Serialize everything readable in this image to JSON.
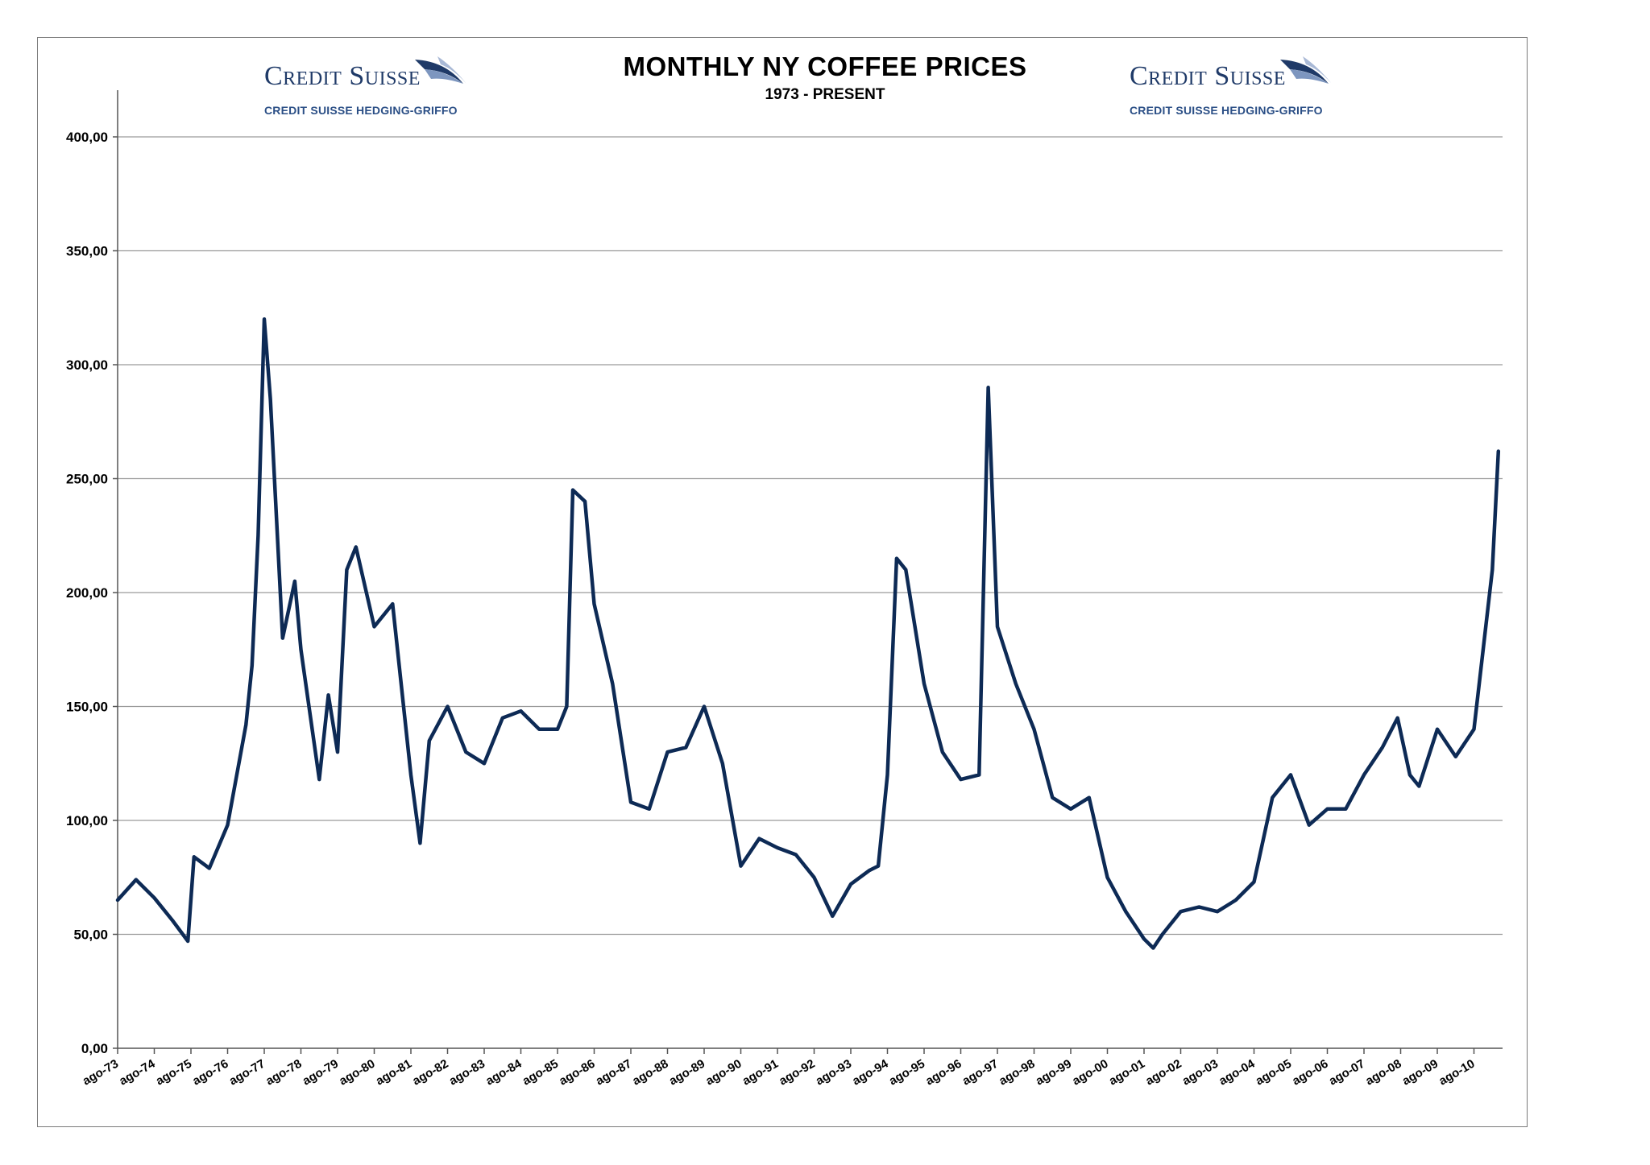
{
  "logos": [
    {
      "brand": "Credit Suisse",
      "sub": "CREDIT SUISSE HEDGING-GRIFFO"
    },
    {
      "brand": "Credit Suisse",
      "sub": "CREDIT SUISSE HEDGING-GRIFFO"
    }
  ],
  "chart_data": {
    "type": "line",
    "title": "MONTHLY NY COFFEE PRICES",
    "subtitle": "1973 - PRESENT",
    "xlabel": "",
    "ylabel": "",
    "ylim": [
      0,
      400
    ],
    "grid": true,
    "line_color": "#0d2a55",
    "y_ticks": [
      "0,00",
      "50,00",
      "100,00",
      "150,00",
      "200,00",
      "250,00",
      "300,00",
      "350,00",
      "400,00"
    ],
    "x_tick_labels": [
      "ago-73",
      "ago-74",
      "ago-75",
      "ago-76",
      "ago-77",
      "ago-78",
      "ago-79",
      "ago-80",
      "ago-81",
      "ago-82",
      "ago-83",
      "ago-84",
      "ago-85",
      "ago-86",
      "ago-87",
      "ago-88",
      "ago-89",
      "ago-90",
      "ago-91",
      "ago-92",
      "ago-93",
      "ago-94",
      "ago-95",
      "ago-96",
      "ago-97",
      "ago-98",
      "ago-99",
      "ago-00",
      "ago-01",
      "ago-02",
      "ago-03",
      "ago-04",
      "ago-05",
      "ago-06",
      "ago-07",
      "ago-08",
      "ago-09",
      "ago-10"
    ],
    "series": [
      {
        "x": [
          "1973-08",
          "1974-02",
          "1974-08",
          "1975-02",
          "1975-07",
          "1975-09",
          "1976-02",
          "1976-08",
          "1977-02",
          "1977-04",
          "1977-06",
          "1977-08",
          "1977-10",
          "1978-02",
          "1978-06",
          "1978-08",
          "1979-02",
          "1979-05",
          "1979-08",
          "1979-11",
          "1980-02",
          "1980-08",
          "1981-02",
          "1981-08",
          "1981-11",
          "1982-02",
          "1982-08",
          "1983-02",
          "1983-08",
          "1984-02",
          "1984-08",
          "1985-02",
          "1985-08",
          "1985-11",
          "1986-01",
          "1986-05",
          "1986-08",
          "1987-02",
          "1987-08",
          "1988-02",
          "1988-08",
          "1989-02",
          "1989-08",
          "1990-02",
          "1990-08",
          "1991-02",
          "1991-08",
          "1992-02",
          "1992-08",
          "1993-02",
          "1993-08",
          "1994-02",
          "1994-05",
          "1994-08",
          "1994-11",
          "1995-02",
          "1995-08",
          "1996-02",
          "1996-08",
          "1997-02",
          "1997-05",
          "1997-08",
          "1998-02",
          "1998-08",
          "1999-02",
          "1999-08",
          "2000-02",
          "2000-08",
          "2001-02",
          "2001-08",
          "2001-11",
          "2002-02",
          "2002-08",
          "2003-02",
          "2003-08",
          "2004-02",
          "2004-08",
          "2005-02",
          "2005-08",
          "2006-02",
          "2006-08",
          "2007-02",
          "2007-08",
          "2008-02",
          "2008-07",
          "2008-11",
          "2009-02",
          "2009-08",
          "2010-02",
          "2010-08",
          "2011-02",
          "2011-04"
        ],
        "values": [
          65,
          74,
          66,
          56,
          47,
          84,
          79,
          98,
          142,
          168,
          225,
          320,
          285,
          180,
          205,
          175,
          118,
          155,
          130,
          210,
          220,
          185,
          195,
          120,
          90,
          135,
          150,
          130,
          125,
          145,
          148,
          140,
          140,
          150,
          245,
          240,
          195,
          160,
          108,
          105,
          130,
          132,
          150,
          125,
          80,
          92,
          88,
          85,
          75,
          58,
          72,
          78,
          80,
          120,
          215,
          210,
          160,
          130,
          118,
          120,
          290,
          185,
          160,
          140,
          110,
          105,
          110,
          75,
          60,
          48,
          44,
          50,
          60,
          62,
          60,
          65,
          73,
          110,
          120,
          98,
          105,
          105,
          120,
          132,
          145,
          120,
          115,
          140,
          128,
          140,
          210,
          262
        ]
      }
    ]
  }
}
